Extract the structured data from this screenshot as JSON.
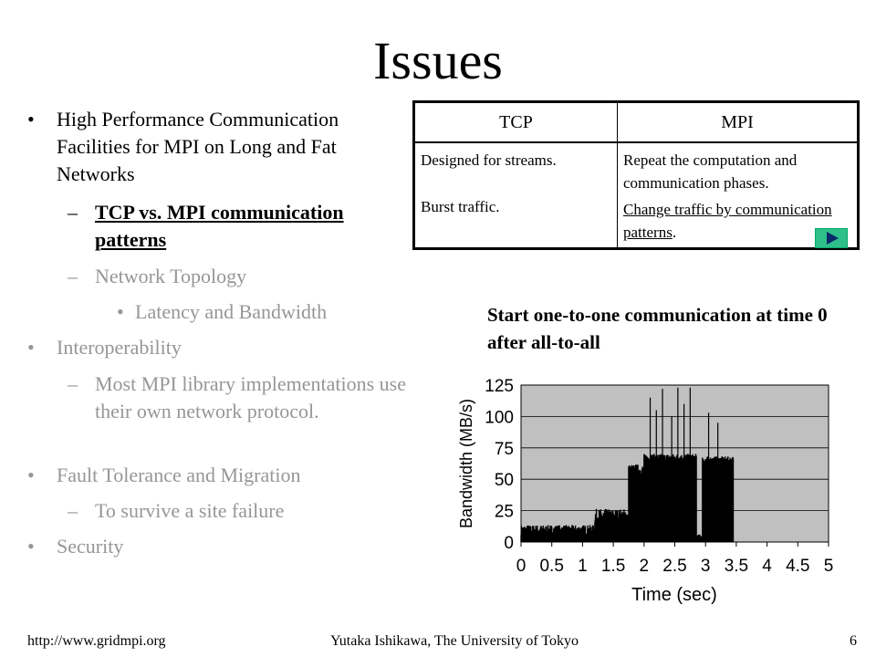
{
  "slide": {
    "title": "Issues",
    "bullets": [
      {
        "level": 1,
        "marker": "•",
        "text": "High Performance Communication Facilities for MPI on Long and Fat Networks",
        "dim": false
      },
      {
        "level": 2,
        "marker": "–",
        "text": "TCP vs. MPI communication patterns",
        "dim": false,
        "bold": true,
        "underline": true
      },
      {
        "level": 2,
        "marker": "–",
        "text": "Network Topology",
        "dim": true
      },
      {
        "level": 3,
        "marker": "•",
        "text": "Latency and Bandwidth",
        "dim": true
      },
      {
        "level": 1,
        "marker": "•",
        "text": "Interoperability",
        "dim": true
      },
      {
        "level": 2,
        "marker": "–",
        "text": "Most MPI library implementations use their own network protocol.",
        "dim": true
      },
      {
        "level": 1,
        "marker": "•",
        "text": "Fault Tolerance and Migration",
        "dim": true
      },
      {
        "level": 2,
        "marker": "–",
        "text": "To survive a site failure",
        "dim": true
      },
      {
        "level": 1,
        "marker": "•",
        "text": "Security",
        "dim": true
      }
    ],
    "table": {
      "headers": [
        "TCP",
        "MPI"
      ],
      "tcp": {
        "line1": "Designed for streams.",
        "line2": "Burst traffic."
      },
      "mpi": {
        "line1": "Repeat the computation and communication phases.",
        "line2": "Change traffic by communication patterns",
        "line2_tail": "."
      }
    },
    "caption": "Start one-to-one communication at time 0 after all-to-all",
    "footer": {
      "left": "http://www.gridmpi.org",
      "center": "Yutaka Ishikawa, The University of Tokyo",
      "right": "6"
    },
    "colors": {
      "plot_background": "#c0c0c0",
      "dim_text": "#969696",
      "play_button": "#2fbf8a"
    },
    "icons": {
      "link_button": "play-triangle-icon"
    }
  },
  "chart_data": {
    "type": "line",
    "xlabel": "Time (sec)",
    "ylabel": "Bandwidth (MB/s)",
    "xlim": [
      0,
      5
    ],
    "ylim": [
      0,
      125
    ],
    "xticks": [
      "0",
      "0.5",
      "1",
      "1.5",
      "2",
      "2.5",
      "3",
      "3.5",
      "4",
      "4.5",
      "5"
    ],
    "yticks": [
      "0",
      "25",
      "50",
      "75",
      "100",
      "125"
    ],
    "grid": true,
    "segments": [
      {
        "name": "",
        "x_start": 0.0,
        "x_end": 1.2,
        "base": 8,
        "noise": 8
      },
      {
        "name": "",
        "x_start": 1.2,
        "x_end": 1.75,
        "base": 18,
        "noise": 12
      },
      {
        "name": "",
        "x_start": 1.75,
        "x_end": 2.0,
        "base": 55,
        "noise": 10
      },
      {
        "name": "",
        "x_start": 2.0,
        "x_end": 2.85,
        "base": 66,
        "noise": 6
      },
      {
        "name": "",
        "x_start": 2.85,
        "x_end": 2.95,
        "base": 4,
        "noise": 3
      },
      {
        "name": "",
        "x_start": 2.95,
        "x_end": 3.45,
        "base": 64,
        "noise": 6
      }
    ],
    "spikes": [
      {
        "x": 2.1,
        "y": 115
      },
      {
        "x": 2.2,
        "y": 105
      },
      {
        "x": 2.3,
        "y": 122
      },
      {
        "x": 2.45,
        "y": 100
      },
      {
        "x": 2.55,
        "y": 123
      },
      {
        "x": 2.65,
        "y": 110
      },
      {
        "x": 2.75,
        "y": 123
      },
      {
        "x": 3.05,
        "y": 103
      },
      {
        "x": 3.2,
        "y": 95
      }
    ]
  }
}
